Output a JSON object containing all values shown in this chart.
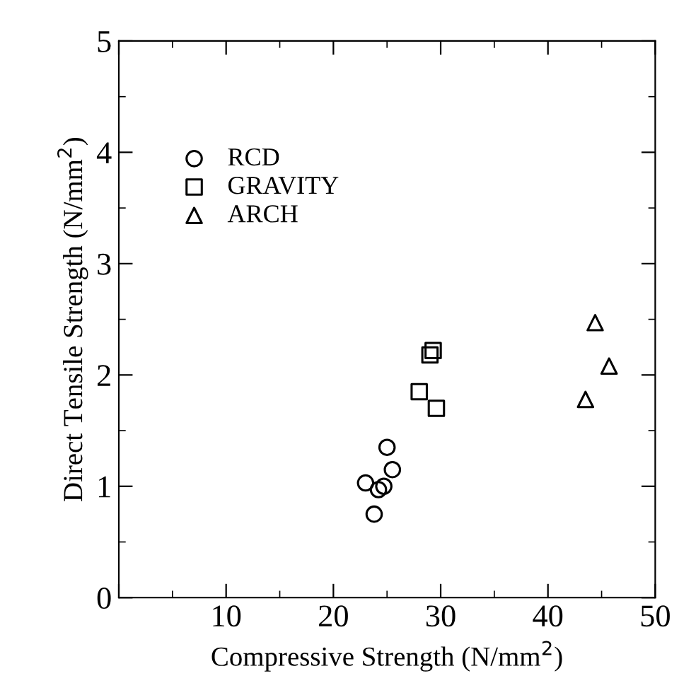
{
  "chart_data": {
    "type": "scatter",
    "xlabel": "Compressive Strength (N/mm$^{2}$)",
    "ylabel": "Direct Tensile Strength (N/mm$^{2}$)",
    "xlim": [
      0,
      50
    ],
    "xticks": [
      {
        "value": 0,
        "label": null
      },
      10,
      20,
      30,
      40,
      50
    ],
    "ylim": [
      0,
      5
    ],
    "yticks": [
      0,
      1,
      2,
      3,
      4,
      5
    ],
    "grid": false,
    "legend": "top left",
    "series": [
      {
        "name": "RCD",
        "marker": "circle",
        "color": "#000000",
        "x": [
          23.0,
          23.8,
          24.2,
          24.7,
          25.0,
          25.5
        ],
        "values": [
          1.03,
          0.75,
          0.97,
          1.0,
          1.35,
          1.15
        ]
      },
      {
        "name": "GRAVITY",
        "marker": "square",
        "color": "#000000",
        "x": [
          28.0,
          29.0,
          29.3,
          29.6
        ],
        "values": [
          1.85,
          2.18,
          2.22,
          1.7
        ]
      },
      {
        "name": "ARCH",
        "marker": "triangle",
        "color": "#000000",
        "x": [
          43.5,
          44.4,
          45.7
        ],
        "values": [
          1.78,
          2.47,
          2.08
        ]
      }
    ]
  }
}
